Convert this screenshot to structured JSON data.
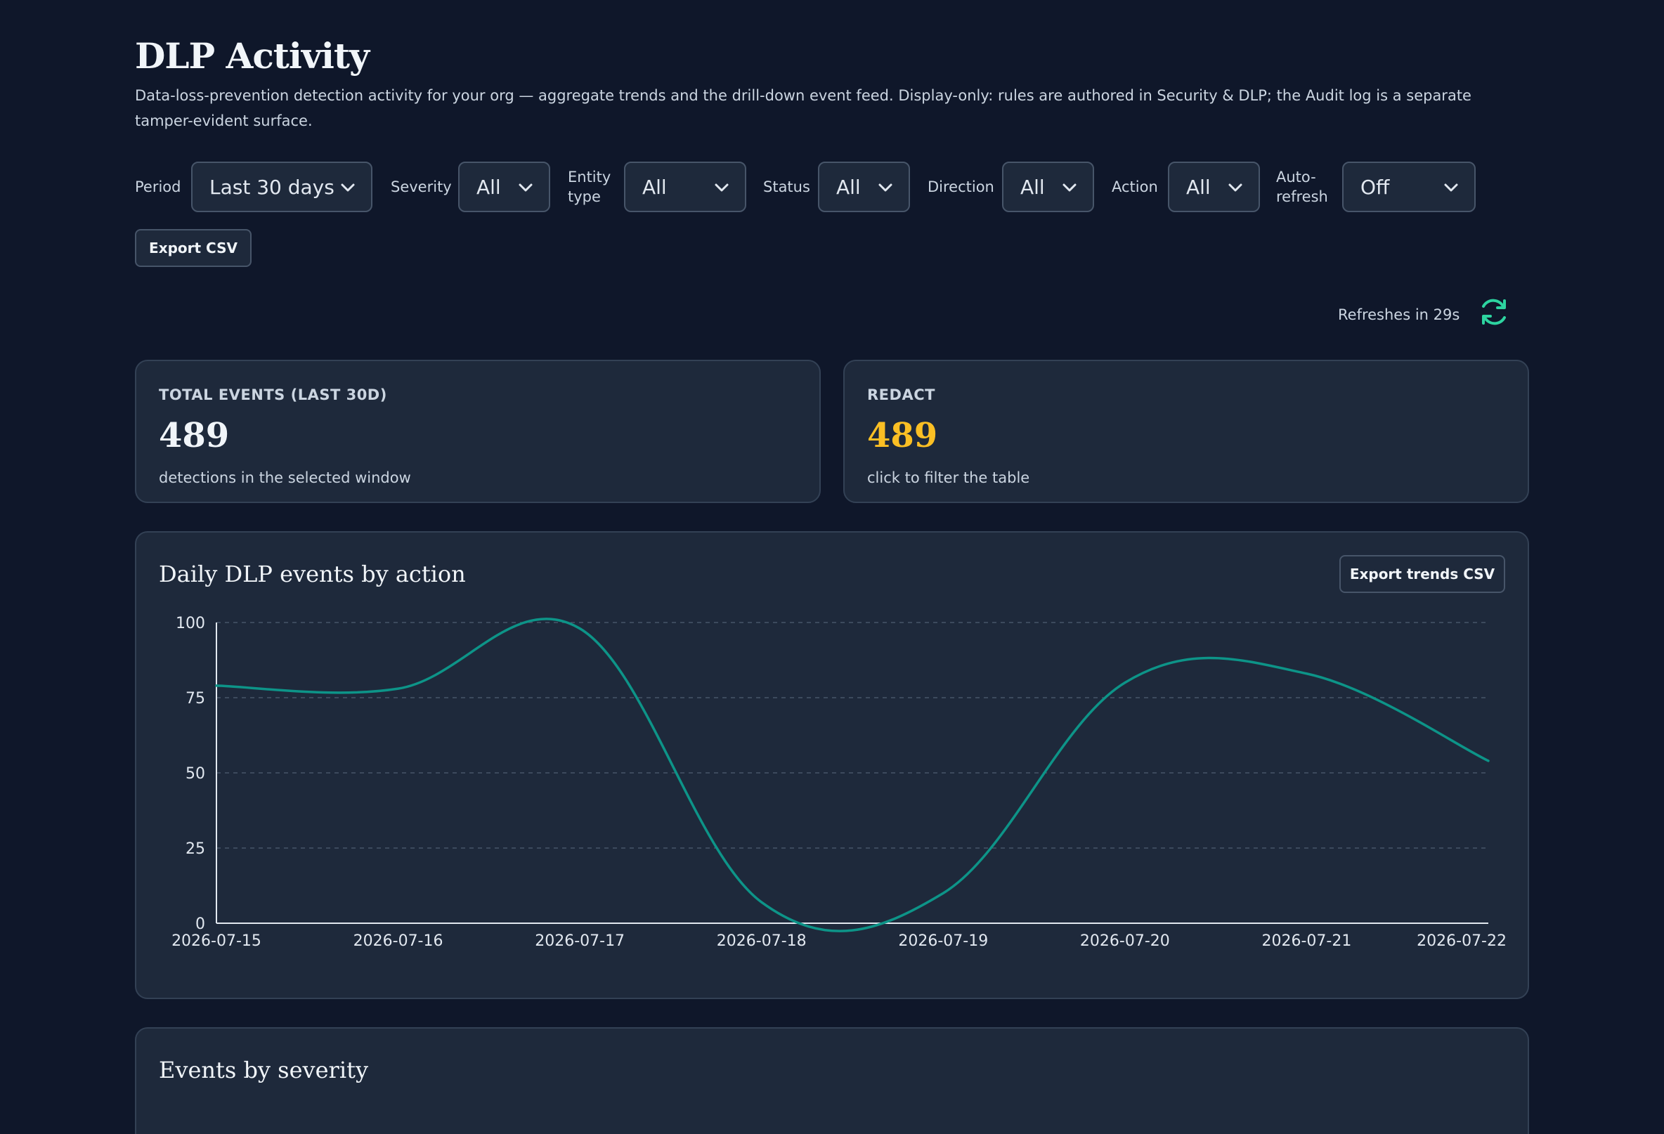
{
  "header": {
    "title": "DLP Activity",
    "subtitle": "Data-loss-prevention detection activity for your org — aggregate trends and the drill-down event feed. Display-only: rules are authored in Security & DLP; the Audit log is a separate tamper-evident surface."
  },
  "filters": {
    "period": {
      "label": "Period",
      "value": "Last 30 days"
    },
    "severity": {
      "label": "Severity",
      "value": "All"
    },
    "entity_type": {
      "label": "Entity type",
      "value": "All"
    },
    "status": {
      "label": "Status",
      "value": "All"
    },
    "direction": {
      "label": "Direction",
      "value": "All"
    },
    "action": {
      "label": "Action",
      "value": "All"
    },
    "auto_refresh": {
      "label": "Auto-refresh",
      "value": "Off"
    }
  },
  "toolbar": {
    "export_csv": "Export CSV",
    "refresh_text": "Refreshes in 29s"
  },
  "kpis": {
    "total": {
      "label": "TOTAL EVENTS (LAST 30D)",
      "value": "489",
      "note": "detections in the selected window"
    },
    "redact": {
      "label": "REDACT",
      "value": "489",
      "note": "click to filter the table",
      "color": "#fbbf24"
    }
  },
  "trend_card": {
    "title": "Daily DLP events by action",
    "export_label": "Export trends CSV"
  },
  "severity_card": {
    "title": "Events by severity"
  },
  "chart_data": {
    "type": "line",
    "x": [
      "2026-07-15",
      "2026-07-16",
      "2026-07-17",
      "2026-07-18",
      "2026-07-19",
      "2026-07-20",
      "2026-07-21",
      "2026-07-22"
    ],
    "series": [
      {
        "values": [
          79,
          78,
          98,
          7,
          10,
          80,
          83,
          54
        ],
        "color": "#0d9488"
      }
    ],
    "ylim": [
      0,
      100
    ],
    "yticks": [
      0,
      25,
      50,
      75,
      100
    ],
    "grid": true
  }
}
